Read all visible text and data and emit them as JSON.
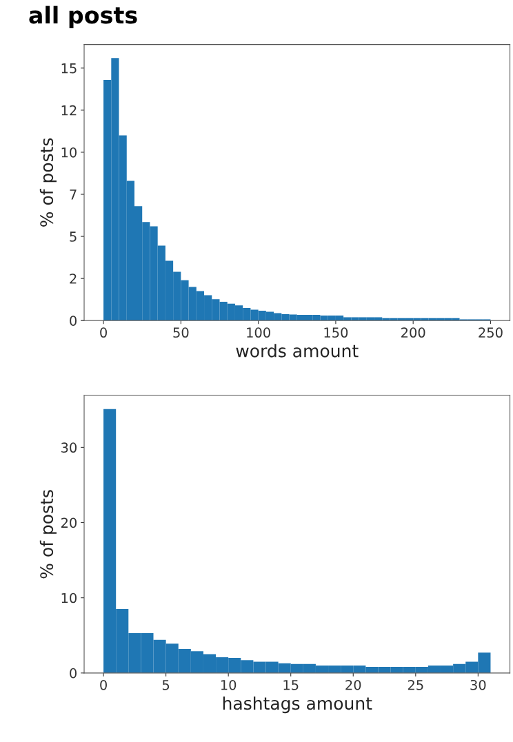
{
  "chart_data": [
    {
      "type": "histogram",
      "title": "all posts",
      "xlabel": "words amount",
      "ylabel": "% of posts",
      "color": "#1f77b4",
      "bins": [
        0,
        5,
        10,
        15,
        20,
        25,
        30,
        35,
        40,
        45,
        50,
        55,
        60,
        65,
        70,
        75,
        80,
        85,
        90,
        95,
        100,
        105,
        110,
        115,
        120,
        125,
        130,
        135,
        140,
        145,
        150,
        155,
        160,
        165,
        170,
        175,
        180,
        185,
        190,
        195,
        200,
        205,
        210,
        215,
        220,
        225,
        230,
        235,
        240,
        245,
        250
      ],
      "values": [
        14.3,
        15.6,
        11.0,
        8.3,
        6.8,
        5.85,
        5.6,
        4.45,
        3.55,
        2.9,
        2.4,
        2.0,
        1.75,
        1.5,
        1.27,
        1.12,
        1.0,
        0.9,
        0.75,
        0.65,
        0.58,
        0.52,
        0.44,
        0.38,
        0.36,
        0.34,
        0.34,
        0.34,
        0.3,
        0.3,
        0.3,
        0.2,
        0.2,
        0.2,
        0.2,
        0.2,
        0.14,
        0.14,
        0.14,
        0.14,
        0.14,
        0.14,
        0.14,
        0.14,
        0.14,
        0.14,
        0.07,
        0.07,
        0.07,
        0.07
      ],
      "xlim": [
        -12.5,
        262.5
      ],
      "xticks": [
        0,
        50,
        100,
        150,
        200,
        250
      ],
      "ylim": [
        0,
        16.4
      ],
      "yticks": [
        0,
        {
          "value": 2.5,
          "label": "2"
        },
        5,
        {
          "value": 7.5,
          "label": "7"
        },
        10,
        {
          "value": 12.5,
          "label": "12"
        },
        15
      ],
      "grid": false,
      "legend": false
    },
    {
      "type": "histogram",
      "xlabel": "hashtags amount",
      "ylabel": "% of posts",
      "color": "#1f77b4",
      "bins": [
        0,
        1,
        2,
        3,
        4,
        5,
        6,
        7,
        8,
        9,
        10,
        11,
        12,
        13,
        14,
        15,
        16,
        17,
        18,
        19,
        20,
        21,
        22,
        23,
        24,
        25,
        26,
        27,
        28,
        29,
        30,
        31
      ],
      "values": [
        35.1,
        8.5,
        5.3,
        5.3,
        4.4,
        3.9,
        3.2,
        2.9,
        2.5,
        2.1,
        2.0,
        1.7,
        1.5,
        1.5,
        1.3,
        1.2,
        1.2,
        1.0,
        1.0,
        1.0,
        1.0,
        0.8,
        0.8,
        0.8,
        0.8,
        0.8,
        1.0,
        1.0,
        1.2,
        1.5,
        2.7
      ],
      "xlim": [
        -1.55,
        32.55
      ],
      "xticks": [
        0,
        5,
        10,
        15,
        20,
        25,
        30
      ],
      "ylim": [
        0,
        36.9
      ],
      "yticks": [
        0,
        10,
        20,
        30
      ],
      "grid": false,
      "legend": false
    }
  ]
}
